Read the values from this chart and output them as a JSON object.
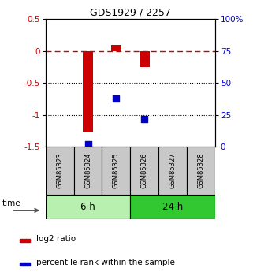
{
  "title": "GDS1929 / 2257",
  "samples": [
    "GSM85323",
    "GSM85324",
    "GSM85325",
    "GSM85326",
    "GSM85327",
    "GSM85328"
  ],
  "log2_ratio": [
    null,
    -1.28,
    0.1,
    -0.25,
    null,
    null
  ],
  "percentile_rank": [
    null,
    2.0,
    38.0,
    22.0,
    null,
    null
  ],
  "ylim_left": [
    -1.5,
    0.5
  ],
  "ylim_right": [
    0,
    100
  ],
  "hlines_dotted": [
    -0.5,
    -1.0
  ],
  "hline_dashed": 0.0,
  "group_labels": [
    "6 h",
    "24 h"
  ],
  "group_ranges": [
    [
      0,
      3
    ],
    [
      3,
      6
    ]
  ],
  "group_colors_light": "#b8f0b0",
  "group_colors_dark": "#32c832",
  "bar_color": "#CC0000",
  "dot_color": "#0000CC",
  "bar_width": 0.35,
  "dot_size": 40,
  "ylabel_left_color": "#CC0000",
  "ylabel_right_color": "#0000CC",
  "yticks_left": [
    0.5,
    0.0,
    -0.5,
    -1.0,
    -1.5
  ],
  "ytick_labels_left": [
    "0.5",
    "0",
    "-0.5",
    "-1",
    "-1.5"
  ],
  "yticks_right": [
    100,
    75,
    50,
    25,
    0
  ],
  "ytick_labels_right": [
    "100%",
    "75",
    "50",
    "25",
    "0"
  ],
  "legend_red_label": "log2 ratio",
  "legend_blue_label": "percentile rank within the sample",
  "time_label": "time",
  "sample_box_color": "#C8C8C8",
  "background_color": "#ffffff"
}
